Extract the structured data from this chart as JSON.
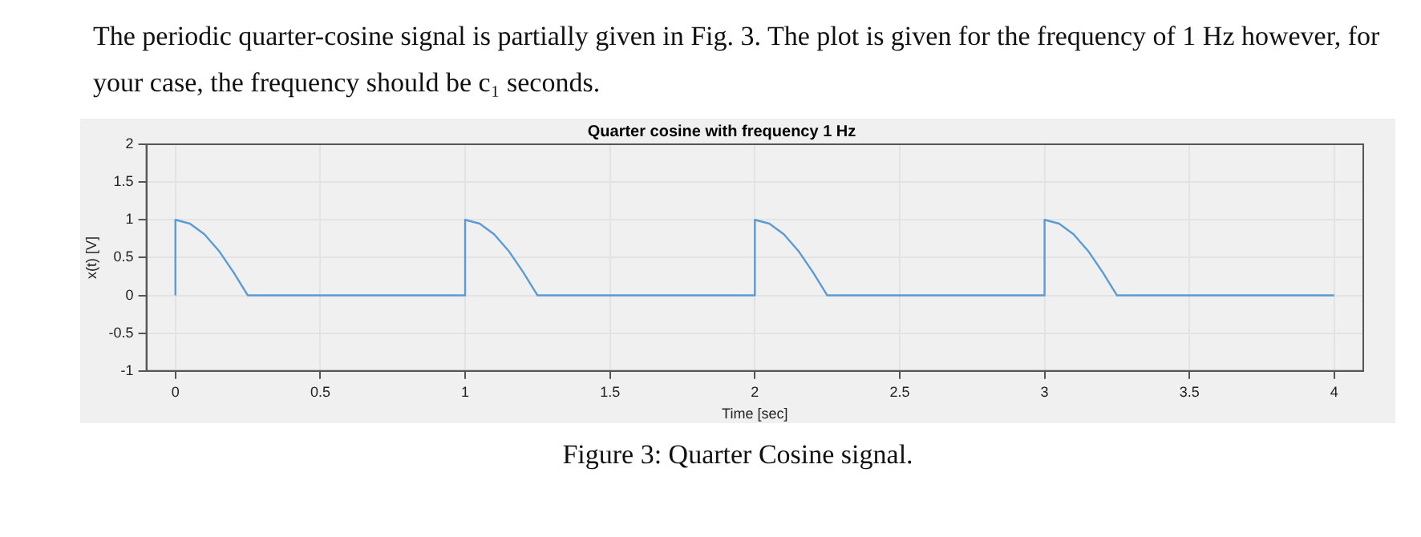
{
  "chart_data": {
    "type": "line",
    "title": "Quarter cosine with frequency 1 Hz",
    "xlabel": "Time [sec]",
    "ylabel": "x(t) [V]",
    "annotations": [
      "The periodic quarter-cosine signal is partially given in Fig. 3.  The plot is given for the frequency of 1 Hz however, for your case, the frequency should be c₁ seconds.",
      "Figure 3: Quarter Cosine signal."
    ],
    "series": [
      {
        "color": "#5b9bd5",
        "x": [
          0,
          0,
          0.05,
          0.1,
          0.15,
          0.2,
          0.25,
          1,
          1,
          1.05,
          1.1,
          1.15,
          1.2,
          1.25,
          2,
          2,
          2.05,
          2.1,
          2.15,
          2.2,
          2.25,
          3,
          3,
          3.05,
          3.1,
          3.15,
          3.2,
          3.25,
          4
        ],
        "values": [
          0,
          1,
          0.95,
          0.81,
          0.59,
          0.31,
          0,
          0,
          1,
          0.95,
          0.81,
          0.59,
          0.31,
          0,
          0,
          1,
          0.95,
          0.81,
          0.59,
          0.31,
          0,
          0,
          1,
          0.95,
          0.81,
          0.59,
          0.31,
          0,
          0
        ]
      }
    ],
    "xlim": [
      -0.1,
      4.1
    ],
    "xticks": [
      0,
      0.5,
      1,
      1.5,
      2,
      2.5,
      3,
      3.5,
      4
    ],
    "ylim": [
      -1,
      2
    ],
    "yticks": [
      -1,
      -0.5,
      0,
      0.5,
      1,
      1.5,
      2
    ],
    "grid": true,
    "legend": false,
    "marker": "none",
    "line_style": "solid"
  }
}
